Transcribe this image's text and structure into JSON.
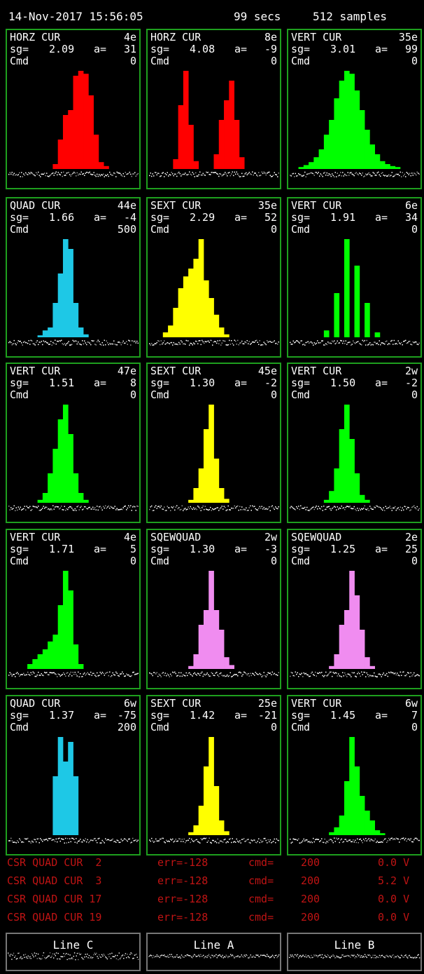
{
  "header": {
    "date": "14-Nov-2017 15:56:05",
    "duration": "99 secs",
    "samples": "512 samples"
  },
  "panels": [
    {
      "name": "HORZ CUR",
      "loc": "4e",
      "sg": "2.09",
      "a": "31",
      "cmd": "0",
      "color": "#ff0000",
      "bars": [
        0,
        0,
        0,
        0,
        0,
        0,
        0,
        0,
        0,
        0.05,
        0.3,
        0.55,
        0.6,
        0.95,
        1,
        0.97,
        0.75,
        0.35,
        0.07,
        0.03,
        0,
        0,
        0,
        0,
        0,
        0
      ]
    },
    {
      "name": "HORZ CUR",
      "loc": "8e",
      "sg": "4.08",
      "a": "-9",
      "cmd": "0",
      "color": "#ff0000",
      "bars": [
        0,
        0,
        0,
        0,
        0,
        0.1,
        0.65,
        1,
        0.45,
        0.08,
        0,
        0,
        0,
        0.15,
        0.5,
        0.7,
        0.9,
        0.5,
        0.12,
        0,
        0,
        0,
        0,
        0,
        0,
        0
      ]
    },
    {
      "name": "VERT CUR",
      "loc": "35e",
      "sg": "3.01",
      "a": "99",
      "cmd": "0",
      "color": "#00ff00",
      "bars": [
        0,
        0,
        0.02,
        0.04,
        0.07,
        0.12,
        0.2,
        0.35,
        0.5,
        0.72,
        0.9,
        1,
        0.97,
        0.8,
        0.6,
        0.4,
        0.25,
        0.15,
        0.08,
        0.05,
        0.03,
        0.02,
        0,
        0,
        0,
        0
      ]
    },
    {
      "name": "QUAD CUR",
      "loc": "44e",
      "sg": "1.66",
      "a": "-4",
      "cmd": "500",
      "color": "#1ec8e6",
      "bars": [
        0,
        0,
        0,
        0,
        0,
        0,
        0.02,
        0.07,
        0.1,
        0.35,
        0.65,
        1,
        0.9,
        0.35,
        0.1,
        0.03,
        0,
        0,
        0,
        0,
        0,
        0,
        0,
        0,
        0,
        0
      ]
    },
    {
      "name": "SEXT CUR",
      "loc": "35e",
      "sg": "2.29",
      "a": "52",
      "cmd": "0",
      "color": "#ffff00",
      "bars": [
        0,
        0,
        0,
        0.05,
        0.12,
        0.3,
        0.5,
        0.62,
        0.7,
        0.8,
        1,
        0.58,
        0.4,
        0.23,
        0.1,
        0.03,
        0,
        0,
        0,
        0,
        0,
        0,
        0,
        0,
        0,
        0
      ]
    },
    {
      "name": "VERT CUR",
      "loc": "6e",
      "sg": "1.91",
      "a": "34",
      "cmd": "0",
      "color": "#00ff00",
      "bars": [
        0,
        0,
        0,
        0,
        0,
        0,
        0,
        0.07,
        0,
        0.45,
        0,
        1,
        0,
        0.73,
        0,
        0.35,
        0,
        0.05,
        0,
        0,
        0,
        0,
        0,
        0,
        0,
        0
      ]
    },
    {
      "name": "VERT CUR",
      "loc": "47e",
      "sg": "1.51",
      "a": "8",
      "cmd": "0",
      "color": "#00ff00",
      "bars": [
        0,
        0,
        0,
        0,
        0,
        0,
        0.03,
        0.1,
        0.3,
        0.55,
        0.85,
        1,
        0.7,
        0.3,
        0.1,
        0.03,
        0,
        0,
        0,
        0,
        0,
        0,
        0,
        0,
        0,
        0
      ]
    },
    {
      "name": "SEXT CUR",
      "loc": "45e",
      "sg": "1.30",
      "a": "-2",
      "cmd": "0",
      "color": "#ffff00",
      "bars": [
        0,
        0,
        0,
        0,
        0,
        0,
        0,
        0,
        0.03,
        0.15,
        0.35,
        0.75,
        1,
        0.45,
        0.15,
        0.04,
        0,
        0,
        0,
        0,
        0,
        0,
        0,
        0,
        0,
        0
      ]
    },
    {
      "name": "VERT CUR",
      "loc": "2w",
      "sg": "1.50",
      "a": "-2",
      "cmd": "0",
      "color": "#00ff00",
      "bars": [
        0,
        0,
        0,
        0,
        0,
        0,
        0,
        0.03,
        0.12,
        0.35,
        0.75,
        1,
        0.65,
        0.3,
        0.08,
        0.03,
        0,
        0,
        0,
        0,
        0,
        0,
        0,
        0,
        0,
        0
      ]
    },
    {
      "name": "VERT CUR",
      "loc": "4e",
      "sg": "1.71",
      "a": "5",
      "cmd": "0",
      "color": "#00ff00",
      "bars": [
        0,
        0,
        0,
        0,
        0.05,
        0.1,
        0.15,
        0.2,
        0.28,
        0.35,
        0.65,
        1,
        0.8,
        0.25,
        0.05,
        0,
        0,
        0,
        0,
        0,
        0,
        0,
        0,
        0,
        0,
        0
      ]
    },
    {
      "name": "SQEWQUAD",
      "loc": "2w",
      "sg": "1.30",
      "a": "-3",
      "cmd": "0",
      "color": "#f08cf0",
      "bars": [
        0,
        0,
        0,
        0,
        0,
        0,
        0,
        0,
        0.03,
        0.15,
        0.45,
        0.6,
        1,
        0.6,
        0.4,
        0.12,
        0.04,
        0,
        0,
        0,
        0,
        0,
        0,
        0,
        0,
        0
      ]
    },
    {
      "name": "SQEWQUAD",
      "loc": "2e",
      "sg": "1.25",
      "a": "25",
      "cmd": "0",
      "color": "#f08cf0",
      "bars": [
        0,
        0,
        0,
        0,
        0,
        0,
        0,
        0,
        0.03,
        0.15,
        0.45,
        0.6,
        1,
        0.75,
        0.4,
        0.12,
        0.03,
        0,
        0,
        0,
        0,
        0,
        0,
        0,
        0,
        0
      ]
    },
    {
      "name": "QUAD CUR",
      "loc": "6w",
      "sg": "1.37",
      "a": "-75",
      "cmd": "200",
      "color": "#1ec8e6",
      "bars": [
        0,
        0,
        0,
        0,
        0,
        0,
        0,
        0,
        0,
        0.6,
        1,
        0.75,
        0.95,
        0.6,
        0,
        0,
        0,
        0,
        0,
        0,
        0,
        0,
        0,
        0,
        0,
        0
      ]
    },
    {
      "name": "SEXT CUR",
      "loc": "25e",
      "sg": "1.42",
      "a": "-21",
      "cmd": "0",
      "color": "#ffff00",
      "bars": [
        0,
        0,
        0,
        0,
        0,
        0,
        0,
        0,
        0.03,
        0.1,
        0.3,
        0.7,
        1,
        0.5,
        0.15,
        0.04,
        0,
        0,
        0,
        0,
        0,
        0,
        0,
        0,
        0,
        0
      ]
    },
    {
      "name": "VERT CUR",
      "loc": "6w",
      "sg": "1.45",
      "a": "7",
      "cmd": "0",
      "color": "#00ff00",
      "bars": [
        0,
        0,
        0,
        0,
        0,
        0,
        0,
        0,
        0.03,
        0.08,
        0.2,
        0.55,
        1,
        0.7,
        0.4,
        0.25,
        0.15,
        0.05,
        0.02,
        0,
        0,
        0,
        0,
        0,
        0,
        0
      ]
    }
  ],
  "status_rows": [
    {
      "label": "CSR QUAD CUR  2",
      "err": "err=-128",
      "cmd": "cmd=",
      "cmd_value": "200",
      "volts": "0.0 V"
    },
    {
      "label": "CSR QUAD CUR  3",
      "err": "err=-128",
      "cmd": "cmd=",
      "cmd_value": "200",
      "volts": "5.2 V"
    },
    {
      "label": "CSR QUAD CUR 17",
      "err": "err=-128",
      "cmd": "cmd=",
      "cmd_value": "200",
      "volts": "0.0 V"
    },
    {
      "label": "CSR QUAD CUR 19",
      "err": "err=-128",
      "cmd": "cmd=",
      "cmd_value": "200",
      "volts": "0.0 V"
    }
  ],
  "lines": [
    {
      "label": "Line C"
    },
    {
      "label": "Line A"
    },
    {
      "label": "Line B"
    }
  ],
  "colors": {
    "panel_border": "#1e9f1e",
    "status_text": "#c01414",
    "line_border": "#777777"
  }
}
